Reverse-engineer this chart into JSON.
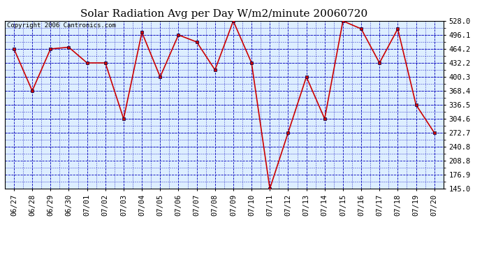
{
  "title": "Solar Radiation Avg per Day W/m2/minute 20060720",
  "copyright": "Copyright 2006 Cantronics.com",
  "dates": [
    "06/27",
    "06/28",
    "06/29",
    "06/30",
    "07/01",
    "07/02",
    "07/03",
    "07/04",
    "07/05",
    "07/06",
    "07/07",
    "07/08",
    "07/09",
    "07/10",
    "07/11",
    "07/12",
    "07/13",
    "07/14",
    "07/15",
    "07/16",
    "07/17",
    "07/18",
    "07/19",
    "07/20"
  ],
  "values": [
    464.2,
    368.4,
    464.2,
    468.0,
    432.2,
    432.2,
    304.6,
    502.1,
    400.3,
    496.1,
    480.0,
    416.2,
    528.0,
    432.2,
    145.0,
    272.7,
    400.3,
    304.6,
    528.0,
    510.0,
    432.2,
    510.0,
    336.5,
    272.7
  ],
  "line_color": "#cc0000",
  "marker_color": "#cc0000",
  "fig_bg_color": "#ffffff",
  "plot_bg_color": "#ddeeff",
  "grid_color": "#0000bb",
  "title_color": "#000000",
  "copyright_color": "#000000",
  "ymin": 145.0,
  "ymax": 528.0,
  "ytick_labels": [
    "145.0",
    "176.9",
    "208.8",
    "240.8",
    "272.7",
    "304.6",
    "336.5",
    "368.4",
    "400.3",
    "432.2",
    "464.2",
    "496.1",
    "528.0"
  ],
  "ytick_values": [
    145.0,
    176.9,
    208.8,
    240.8,
    272.7,
    304.6,
    336.5,
    368.4,
    400.3,
    432.2,
    464.2,
    496.1,
    528.0
  ],
  "title_fontsize": 11,
  "copyright_fontsize": 6.5,
  "tick_fontsize": 7.5
}
